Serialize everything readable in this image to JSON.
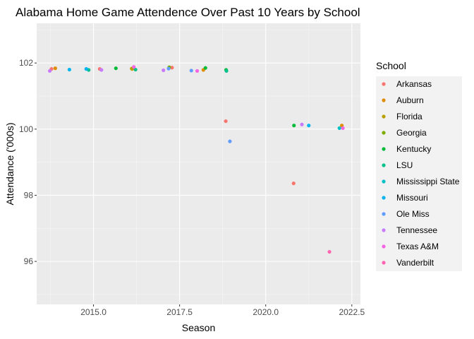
{
  "chart_data": {
    "type": "scatter",
    "title": "Alabama Home Game Attendence Over Past 10 Years by School",
    "xlabel": "Season",
    "ylabel": "Attendance ('000s)",
    "xlim": [
      2013.35,
      2022.75
    ],
    "ylim": [
      94.7,
      103.2
    ],
    "x_ticks": [
      2015.0,
      2017.5,
      2020.0,
      2022.5
    ],
    "x_tick_labels": [
      "2015.0",
      "2017.5",
      "2020.0",
      "2022.5"
    ],
    "y_ticks": [
      96,
      98,
      100,
      102
    ],
    "y_tick_labels": [
      "96",
      "98",
      "100",
      "102"
    ],
    "grid": true,
    "background": "#ebebeb",
    "legend": {
      "title": "School",
      "placement": "right",
      "entries": [
        {
          "name": "Arkansas",
          "color": "#F8766D"
        },
        {
          "name": "Auburn",
          "color": "#DE8C00"
        },
        {
          "name": "Florida",
          "color": "#B79F00"
        },
        {
          "name": "Georgia",
          "color": "#7CAE00"
        },
        {
          "name": "Kentucky",
          "color": "#00BA38"
        },
        {
          "name": "LSU",
          "color": "#00C08B"
        },
        {
          "name": "Mississippi State",
          "color": "#00BFC4"
        },
        {
          "name": "Missouri",
          "color": "#00B4F0"
        },
        {
          "name": "Ole Miss",
          "color": "#619CFF"
        },
        {
          "name": "Tennessee",
          "color": "#C77CFF"
        },
        {
          "name": "Texas A&M",
          "color": "#F564E3"
        },
        {
          "name": "Vanderbilt",
          "color": "#FF64B0"
        }
      ]
    },
    "series": [
      {
        "name": "Arkansas",
        "points": [
          [
            2013.78,
            101.82
          ],
          [
            2015.18,
            101.82
          ],
          [
            2017.28,
            101.86
          ],
          [
            2018.84,
            100.24
          ],
          [
            2020.81,
            98.36
          ]
        ]
      },
      {
        "name": "Auburn",
        "points": [
          [
            2013.89,
            101.84
          ],
          [
            2016.12,
            101.82
          ],
          [
            2018.19,
            101.79
          ],
          [
            2022.21,
            100.11
          ]
        ]
      },
      {
        "name": "Florida",
        "points": [
          [
            2016.11,
            101.83
          ]
        ]
      },
      {
        "name": "Georgia",
        "points": [
          [
            2017.2,
            101.87
          ]
        ]
      },
      {
        "name": "Kentucky",
        "points": [
          [
            2015.65,
            101.84
          ],
          [
            2018.25,
            101.85
          ],
          [
            2018.85,
            101.79
          ],
          [
            2020.82,
            100.11
          ]
        ]
      },
      {
        "name": "LSU",
        "points": [
          [
            2014.86,
            101.79
          ],
          [
            2016.22,
            101.8
          ],
          [
            2018.86,
            101.76
          ]
        ]
      },
      {
        "name": "Mississippi State",
        "points": [
          [
            2022.14,
            100.03
          ]
        ]
      },
      {
        "name": "Missouri",
        "points": [
          [
            2014.3,
            101.8
          ],
          [
            2014.79,
            101.82
          ],
          [
            2021.25,
            100.11
          ]
        ]
      },
      {
        "name": "Ole Miss",
        "points": [
          [
            2017.18,
            101.83
          ],
          [
            2017.84,
            101.77
          ],
          [
            2018.96,
            99.63
          ]
        ]
      },
      {
        "name": "Tennessee",
        "points": [
          [
            2013.73,
            101.76
          ],
          [
            2015.23,
            101.79
          ],
          [
            2017.03,
            101.78
          ],
          [
            2021.05,
            100.14
          ]
        ]
      },
      {
        "name": "Texas A&M",
        "points": [
          [
            2016.17,
            101.88
          ],
          [
            2018.01,
            101.76
          ],
          [
            2022.24,
            100.03
          ]
        ]
      },
      {
        "name": "Vanderbilt",
        "points": [
          [
            2021.85,
            96.29
          ]
        ]
      }
    ]
  }
}
